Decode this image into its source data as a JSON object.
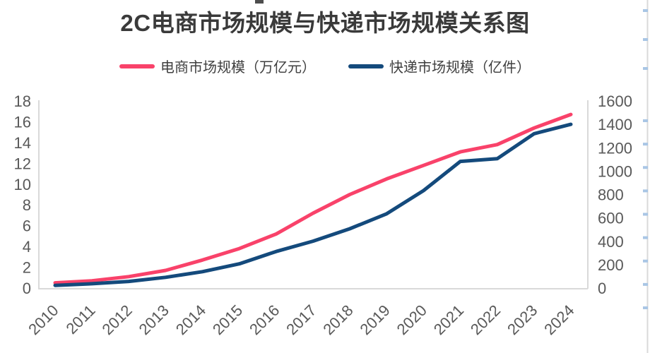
{
  "header": {
    "title": "2C电商市场规模与快递市场规模关系图"
  },
  "chart_data": {
    "type": "line",
    "title": "2C电商市场规模与快递市场规模关系图",
    "categories": [
      "2010",
      "2011",
      "2012",
      "2013",
      "2014",
      "2015",
      "2016",
      "2017",
      "2018",
      "2019",
      "2020",
      "2021",
      "2022",
      "2023",
      "2024"
    ],
    "series": [
      {
        "name": "电商市场规模（万亿元）",
        "yaxis": "left",
        "color": "#f9426a",
        "values": [
          0.5,
          0.7,
          1.1,
          1.7,
          2.7,
          3.8,
          5.2,
          7.2,
          9.0,
          10.5,
          11.8,
          13.1,
          13.8,
          15.4,
          16.7
        ]
      },
      {
        "name": "快递市场规模（亿件）",
        "yaxis": "right",
        "color": "#144a7c",
        "values": [
          23,
          37,
          57,
          92,
          140,
          207,
          313,
          401,
          507,
          635,
          833,
          1083,
          1106,
          1320,
          1400
        ]
      }
    ],
    "left_axis": {
      "min": 0,
      "max": 18,
      "ticks": [
        0,
        2,
        4,
        6,
        8,
        10,
        12,
        14,
        16,
        18
      ]
    },
    "right_axis": {
      "min": 0,
      "max": 1600,
      "ticks": [
        0,
        200,
        400,
        600,
        800,
        1000,
        1200,
        1400,
        1600
      ]
    },
    "grid": false,
    "legend_position": "top",
    "axis_line_color": "#d9d9d9",
    "tick_label_color": "#595959"
  }
}
